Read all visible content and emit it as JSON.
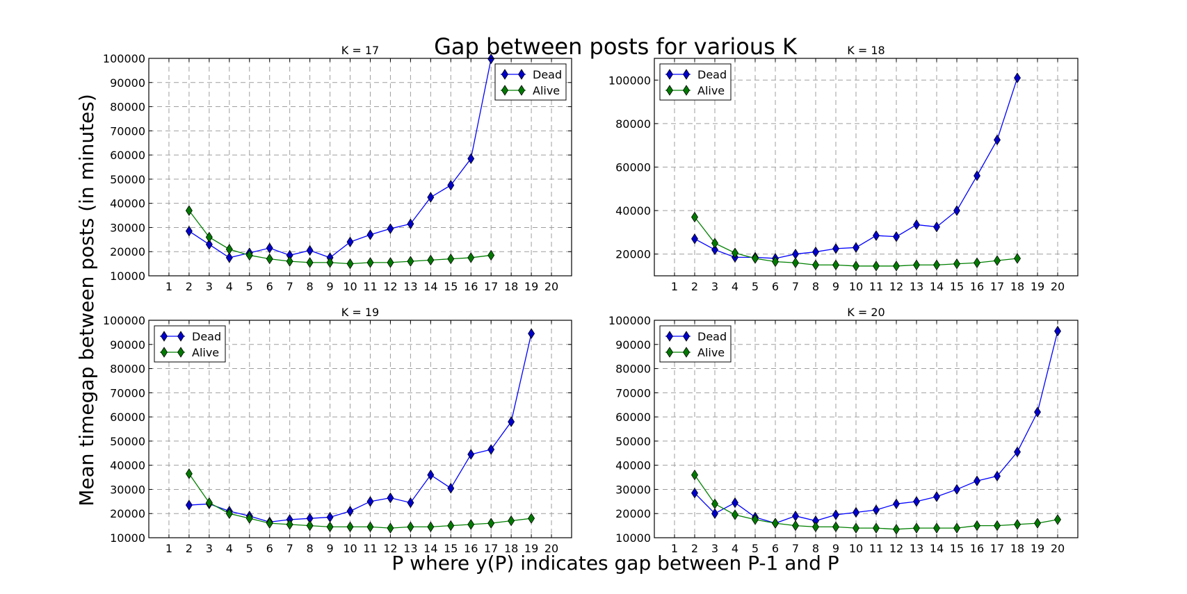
{
  "figure": {
    "title": "Gap between posts for various K",
    "ylabel": "Mean timegap between posts (in minutes)",
    "xlabel": "P where y(P) indicates gap between P-1 and P"
  },
  "colors": {
    "dead": "#0000ff",
    "alive": "#008000",
    "dead_marker_fill": "#0000cc",
    "alive_marker_fill": "#007a00"
  },
  "chart_data": [
    {
      "type": "line",
      "title": "K = 17",
      "xlim": [
        0,
        21
      ],
      "xticks": [
        1,
        2,
        3,
        4,
        5,
        6,
        7,
        8,
        9,
        10,
        11,
        12,
        13,
        14,
        15,
        16,
        17,
        18,
        19,
        20
      ],
      "ylim": [
        10000,
        100000
      ],
      "yticks": [
        10000,
        20000,
        30000,
        40000,
        50000,
        60000,
        70000,
        80000,
        90000,
        100000
      ],
      "grid": true,
      "legend": "top-right",
      "series": [
        {
          "name": "Dead",
          "x": [
            2,
            3,
            4,
            5,
            6,
            7,
            8,
            9,
            10,
            11,
            12,
            13,
            14,
            15,
            16,
            17
          ],
          "values": [
            28500,
            23000,
            17500,
            19500,
            21500,
            18500,
            20500,
            17500,
            24000,
            27000,
            29500,
            31500,
            42500,
            47500,
            58500,
            99800
          ]
        },
        {
          "name": "Alive",
          "x": [
            2,
            3,
            4,
            5,
            6,
            7,
            8,
            9,
            10,
            11,
            12,
            13,
            14,
            15,
            16,
            17
          ],
          "values": [
            37000,
            26000,
            21000,
            18500,
            17000,
            16000,
            15500,
            15500,
            15000,
            15500,
            15500,
            16000,
            16500,
            17000,
            17500,
            18500
          ]
        }
      ]
    },
    {
      "type": "line",
      "title": "K = 18",
      "xlim": [
        0,
        21
      ],
      "xticks": [
        1,
        2,
        3,
        4,
        5,
        6,
        7,
        8,
        9,
        10,
        11,
        12,
        13,
        14,
        15,
        16,
        17,
        18,
        19,
        20
      ],
      "ylim": [
        10000,
        110000
      ],
      "yticks": [
        20000,
        40000,
        60000,
        80000,
        100000
      ],
      "grid": true,
      "legend": "top-left",
      "series": [
        {
          "name": "Dead",
          "x": [
            2,
            3,
            4,
            5,
            6,
            7,
            8,
            9,
            10,
            11,
            12,
            13,
            14,
            15,
            16,
            17,
            18
          ],
          "values": [
            27000,
            22000,
            18500,
            18500,
            18000,
            20000,
            21000,
            22500,
            23000,
            28500,
            28000,
            33500,
            32500,
            40000,
            56000,
            72500,
            101000
          ]
        },
        {
          "name": "Alive",
          "x": [
            2,
            3,
            4,
            5,
            6,
            7,
            8,
            9,
            10,
            11,
            12,
            13,
            14,
            15,
            16,
            17,
            18
          ],
          "values": [
            37000,
            25000,
            20500,
            18000,
            16500,
            16000,
            15000,
            15000,
            14500,
            14500,
            14500,
            15000,
            15000,
            15500,
            16000,
            17000,
            18000
          ]
        }
      ]
    },
    {
      "type": "line",
      "title": "K = 19",
      "xlim": [
        0,
        21
      ],
      "xticks": [
        1,
        2,
        3,
        4,
        5,
        6,
        7,
        8,
        9,
        10,
        11,
        12,
        13,
        14,
        15,
        16,
        17,
        18,
        19,
        20
      ],
      "ylim": [
        10000,
        100000
      ],
      "yticks": [
        10000,
        20000,
        30000,
        40000,
        50000,
        60000,
        70000,
        80000,
        90000,
        100000
      ],
      "grid": true,
      "legend": "top-left",
      "series": [
        {
          "name": "Dead",
          "x": [
            2,
            3,
            4,
            5,
            6,
            7,
            8,
            9,
            10,
            11,
            12,
            13,
            14,
            15,
            16,
            17,
            18,
            19
          ],
          "values": [
            23500,
            24000,
            21000,
            19000,
            16500,
            17500,
            18000,
            18500,
            21000,
            25000,
            26500,
            24500,
            36000,
            30500,
            44500,
            46500,
            58000,
            94500
          ]
        },
        {
          "name": "Alive",
          "x": [
            2,
            3,
            4,
            5,
            6,
            7,
            8,
            9,
            10,
            11,
            12,
            13,
            14,
            15,
            16,
            17,
            18,
            19
          ],
          "values": [
            36500,
            24500,
            20000,
            18000,
            16000,
            15500,
            15000,
            14500,
            14500,
            14500,
            14000,
            14500,
            14500,
            15000,
            15500,
            16000,
            17000,
            18000
          ]
        }
      ]
    },
    {
      "type": "line",
      "title": "K = 20",
      "xlim": [
        0,
        21
      ],
      "xticks": [
        1,
        2,
        3,
        4,
        5,
        6,
        7,
        8,
        9,
        10,
        11,
        12,
        13,
        14,
        15,
        16,
        17,
        18,
        19,
        20
      ],
      "ylim": [
        10000,
        100000
      ],
      "yticks": [
        10000,
        20000,
        30000,
        40000,
        50000,
        60000,
        70000,
        80000,
        90000,
        100000
      ],
      "grid": true,
      "legend": "top-left",
      "series": [
        {
          "name": "Dead",
          "x": [
            2,
            3,
            4,
            5,
            6,
            7,
            8,
            9,
            10,
            11,
            12,
            13,
            14,
            15,
            16,
            17,
            18,
            19,
            20
          ],
          "values": [
            28500,
            20000,
            24500,
            18500,
            16000,
            19000,
            17000,
            19500,
            20500,
            21500,
            24000,
            25000,
            27000,
            30000,
            33500,
            35500,
            45500,
            62000,
            95500
          ]
        },
        {
          "name": "Alive",
          "x": [
            2,
            3,
            4,
            5,
            6,
            7,
            8,
            9,
            10,
            11,
            12,
            13,
            14,
            15,
            16,
            17,
            18,
            19,
            20
          ],
          "values": [
            36000,
            24000,
            19500,
            17500,
            16000,
            15000,
            14500,
            14500,
            14000,
            14000,
            13500,
            14000,
            14000,
            14000,
            15000,
            15000,
            15500,
            16000,
            17500
          ]
        }
      ]
    }
  ]
}
